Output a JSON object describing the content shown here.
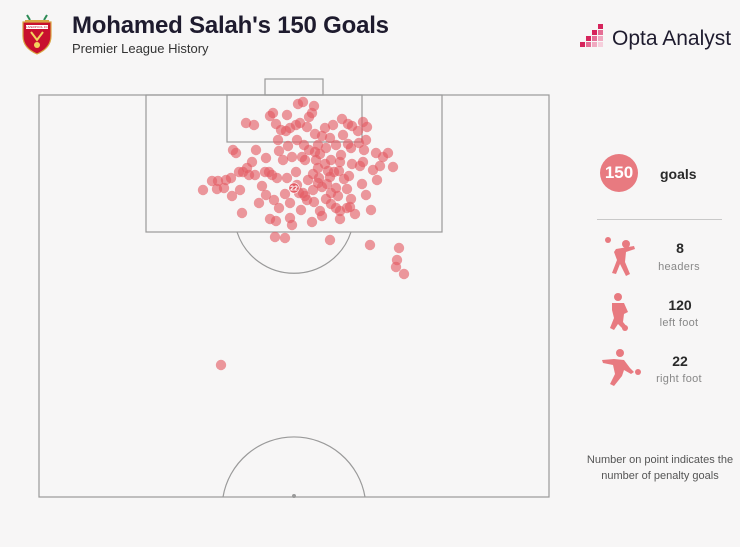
{
  "header": {
    "title": "Mohamed Salah's 150 Goals",
    "subtitle": "Premier League History",
    "brand": "Opta Analyst",
    "crest_text": "LIVERPOOL FC"
  },
  "colors": {
    "shot": "#e35a62",
    "accent": "#e87a80",
    "brand_pink": "#d6245c",
    "pitch_line": "#9a9a9a",
    "crest_red": "#c8102e"
  },
  "summary": {
    "total": "150",
    "total_label": "goals",
    "stats": [
      {
        "value": "8",
        "label": "headers",
        "icon": "header-player-icon"
      },
      {
        "value": "120",
        "label": "left foot",
        "icon": "left-foot-player-icon"
      },
      {
        "value": "22",
        "label": "right foot",
        "icon": "right-foot-player-icon"
      }
    ]
  },
  "note": "Number on point indicates the number of penalty goals",
  "chart_data": {
    "type": "scatter",
    "title": "Mohamed Salah's 150 Goals",
    "subtitle": "Premier League History",
    "xlabel": "",
    "ylabel": "",
    "grid": false,
    "legend": "none",
    "penalty_goals": 22,
    "penalty_label": "22",
    "points": [
      {
        "x": 298,
        "y": 104
      },
      {
        "x": 303,
        "y": 102
      },
      {
        "x": 314,
        "y": 106
      },
      {
        "x": 312,
        "y": 113
      },
      {
        "x": 270,
        "y": 116
      },
      {
        "x": 273,
        "y": 113
      },
      {
        "x": 246,
        "y": 123
      },
      {
        "x": 254,
        "y": 125
      },
      {
        "x": 281,
        "y": 130
      },
      {
        "x": 290,
        "y": 128
      },
      {
        "x": 296,
        "y": 125
      },
      {
        "x": 300,
        "y": 123
      },
      {
        "x": 307,
        "y": 127
      },
      {
        "x": 315,
        "y": 134
      },
      {
        "x": 322,
        "y": 136
      },
      {
        "x": 330,
        "y": 138
      },
      {
        "x": 342,
        "y": 119
      },
      {
        "x": 348,
        "y": 124
      },
      {
        "x": 352,
        "y": 126
      },
      {
        "x": 363,
        "y": 122
      },
      {
        "x": 367,
        "y": 127
      },
      {
        "x": 358,
        "y": 131
      },
      {
        "x": 278,
        "y": 140
      },
      {
        "x": 288,
        "y": 146
      },
      {
        "x": 297,
        "y": 140
      },
      {
        "x": 233,
        "y": 150
      },
      {
        "x": 236,
        "y": 153
      },
      {
        "x": 252,
        "y": 162
      },
      {
        "x": 266,
        "y": 158
      },
      {
        "x": 279,
        "y": 151
      },
      {
        "x": 292,
        "y": 157
      },
      {
        "x": 302,
        "y": 157
      },
      {
        "x": 309,
        "y": 150
      },
      {
        "x": 315,
        "y": 152
      },
      {
        "x": 320,
        "y": 154
      },
      {
        "x": 326,
        "y": 148
      },
      {
        "x": 336,
        "y": 145
      },
      {
        "x": 348,
        "y": 144
      },
      {
        "x": 351,
        "y": 148
      },
      {
        "x": 364,
        "y": 150
      },
      {
        "x": 376,
        "y": 153
      },
      {
        "x": 383,
        "y": 157
      },
      {
        "x": 388,
        "y": 153
      },
      {
        "x": 393,
        "y": 167
      },
      {
        "x": 373,
        "y": 170
      },
      {
        "x": 363,
        "y": 162
      },
      {
        "x": 352,
        "y": 164
      },
      {
        "x": 340,
        "y": 162
      },
      {
        "x": 331,
        "y": 160
      },
      {
        "x": 325,
        "y": 164
      },
      {
        "x": 318,
        "y": 168
      },
      {
        "x": 305,
        "y": 160
      },
      {
        "x": 296,
        "y": 172
      },
      {
        "x": 287,
        "y": 178
      },
      {
        "x": 277,
        "y": 178
      },
      {
        "x": 269,
        "y": 172
      },
      {
        "x": 265,
        "y": 172
      },
      {
        "x": 255,
        "y": 175
      },
      {
        "x": 249,
        "y": 175
      },
      {
        "x": 243,
        "y": 172
      },
      {
        "x": 239,
        "y": 172
      },
      {
        "x": 231,
        "y": 178
      },
      {
        "x": 226,
        "y": 180
      },
      {
        "x": 218,
        "y": 181
      },
      {
        "x": 217,
        "y": 189
      },
      {
        "x": 212,
        "y": 181
      },
      {
        "x": 203,
        "y": 190
      },
      {
        "x": 232,
        "y": 196
      },
      {
        "x": 240,
        "y": 190
      },
      {
        "x": 242,
        "y": 213
      },
      {
        "x": 259,
        "y": 203
      },
      {
        "x": 274,
        "y": 200
      },
      {
        "x": 285,
        "y": 194
      },
      {
        "x": 290,
        "y": 203
      },
      {
        "x": 299,
        "y": 193
      },
      {
        "x": 305,
        "y": 196
      },
      {
        "x": 313,
        "y": 190
      },
      {
        "x": 318,
        "y": 183
      },
      {
        "x": 322,
        "y": 187
      },
      {
        "x": 327,
        "y": 184
      },
      {
        "x": 330,
        "y": 177
      },
      {
        "x": 334,
        "y": 172
      },
      {
        "x": 339,
        "y": 171
      },
      {
        "x": 344,
        "y": 179
      },
      {
        "x": 347,
        "y": 189
      },
      {
        "x": 351,
        "y": 199
      },
      {
        "x": 347,
        "y": 208
      },
      {
        "x": 340,
        "y": 211
      },
      {
        "x": 336,
        "y": 208
      },
      {
        "x": 331,
        "y": 204
      },
      {
        "x": 326,
        "y": 199
      },
      {
        "x": 320,
        "y": 211
      },
      {
        "x": 314,
        "y": 202
      },
      {
        "x": 307,
        "y": 200
      },
      {
        "x": 303,
        "y": 193
      },
      {
        "x": 308,
        "y": 180
      },
      {
        "x": 313,
        "y": 174
      },
      {
        "x": 319,
        "y": 178
      },
      {
        "x": 331,
        "y": 193
      },
      {
        "x": 338,
        "y": 196
      },
      {
        "x": 340,
        "y": 219
      },
      {
        "x": 350,
        "y": 207
      },
      {
        "x": 362,
        "y": 184
      },
      {
        "x": 371,
        "y": 210
      },
      {
        "x": 290,
        "y": 218
      },
      {
        "x": 276,
        "y": 221
      },
      {
        "x": 270,
        "y": 219
      },
      {
        "x": 292,
        "y": 225
      },
      {
        "x": 285,
        "y": 238
      },
      {
        "x": 275,
        "y": 237
      },
      {
        "x": 330,
        "y": 240
      },
      {
        "x": 370,
        "y": 245
      },
      {
        "x": 399,
        "y": 248
      },
      {
        "x": 397,
        "y": 260
      },
      {
        "x": 396,
        "y": 267
      },
      {
        "x": 404,
        "y": 274
      },
      {
        "x": 221,
        "y": 365
      },
      {
        "x": 276,
        "y": 124
      },
      {
        "x": 286,
        "y": 131
      },
      {
        "x": 318,
        "y": 145
      },
      {
        "x": 359,
        "y": 143
      },
      {
        "x": 262,
        "y": 186
      },
      {
        "x": 297,
        "y": 185
      },
      {
        "x": 336,
        "y": 188
      },
      {
        "x": 328,
        "y": 171
      },
      {
        "x": 341,
        "y": 155
      },
      {
        "x": 325,
        "y": 128
      },
      {
        "x": 304,
        "y": 145
      },
      {
        "x": 283,
        "y": 160
      },
      {
        "x": 272,
        "y": 175
      },
      {
        "x": 349,
        "y": 176
      },
      {
        "x": 360,
        "y": 166
      },
      {
        "x": 366,
        "y": 140
      },
      {
        "x": 333,
        "y": 125
      },
      {
        "x": 309,
        "y": 117
      },
      {
        "x": 287,
        "y": 115
      },
      {
        "x": 256,
        "y": 150
      },
      {
        "x": 247,
        "y": 168
      },
      {
        "x": 224,
        "y": 188
      },
      {
        "x": 266,
        "y": 195
      },
      {
        "x": 279,
        "y": 208
      },
      {
        "x": 301,
        "y": 210
      },
      {
        "x": 312,
        "y": 222
      },
      {
        "x": 322,
        "y": 216
      },
      {
        "x": 355,
        "y": 214
      },
      {
        "x": 366,
        "y": 195
      },
      {
        "x": 377,
        "y": 180
      },
      {
        "x": 380,
        "y": 166
      },
      {
        "x": 316,
        "y": 160
      },
      {
        "x": 343,
        "y": 135
      }
    ]
  }
}
